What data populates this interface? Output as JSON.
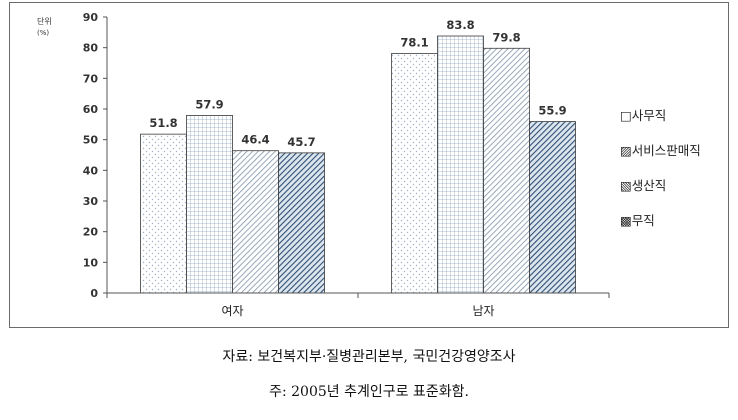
{
  "chart_data": {
    "type": "bar",
    "ylabel": "단위\n(%)",
    "categories": [
      "여자",
      "남자"
    ],
    "ylim": [
      0,
      90
    ],
    "yticks": [
      0,
      10,
      20,
      30,
      40,
      50,
      60,
      70,
      80,
      90
    ],
    "grid": false,
    "legend_position": "right",
    "series": [
      {
        "name": "사무직",
        "values": [
          51.8,
          78.1
        ],
        "pattern": "dots"
      },
      {
        "name": "서비스판매직",
        "values": [
          57.9,
          83.8
        ],
        "pattern": "grid"
      },
      {
        "name": "생산직",
        "values": [
          46.4,
          79.8
        ],
        "pattern": "hatch"
      },
      {
        "name": "무직",
        "values": [
          45.7,
          55.9
        ],
        "pattern": "dark-hatch"
      }
    ],
    "legend_prefixes": [
      "□",
      "▨",
      "▧",
      "▩"
    ]
  },
  "captions": {
    "source": "자료: 보건복지부·질병관리본부, 국민건강영양조사",
    "note": "주: 2005년 추계인구로 표준화함."
  },
  "colors": {
    "axis": "#333333",
    "bar_stroke": "#3a3a3a",
    "dots": "#9fb3c8",
    "grid": "#8fa6bd",
    "hatch": "#7f93a8",
    "dark_hatch": "#2f4f73"
  }
}
